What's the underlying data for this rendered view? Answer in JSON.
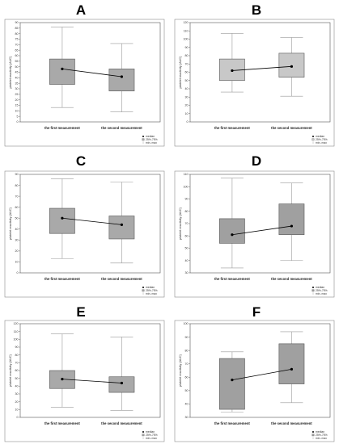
{
  "chart_data": [
    {
      "type": "box",
      "panel_letter": "A",
      "ylabel": "platelet reactivity (AUC)",
      "ylim": [
        0,
        90
      ],
      "yticks": [
        0,
        5,
        10,
        15,
        20,
        25,
        30,
        35,
        40,
        45,
        50,
        55,
        60,
        65,
        70,
        75,
        80,
        85,
        90
      ],
      "categories": [
        "the first measurement",
        "the second measurement"
      ],
      "box_fill": "#a9a9a9",
      "boxes": [
        {
          "min": 13,
          "q1": 34,
          "median": 48,
          "q3": 57,
          "max": 86
        },
        {
          "min": 9,
          "q1": 28,
          "median": 41,
          "q3": 48,
          "max": 71
        }
      ],
      "legend": [
        "median",
        "25%-75%",
        "min- max"
      ]
    },
    {
      "type": "box",
      "panel_letter": "B",
      "ylabel": "platelet reactivity (AUC)",
      "ylim": [
        0,
        120
      ],
      "yticks": [
        0,
        10,
        20,
        30,
        40,
        50,
        60,
        70,
        80,
        90,
        100,
        110,
        120
      ],
      "categories": [
        "the first measurement",
        "the second measurement"
      ],
      "box_fill": "#c8c8c8",
      "boxes": [
        {
          "min": 36,
          "q1": 50,
          "median": 62,
          "q3": 76,
          "max": 107
        },
        {
          "min": 31,
          "q1": 54,
          "median": 67,
          "q3": 83,
          "max": 102
        }
      ],
      "legend": [
        "median",
        "25%-75%",
        "min- max"
      ]
    },
    {
      "type": "box",
      "panel_letter": "C",
      "ylabel": "platelet reactivity (AUC)",
      "ylim": [
        0,
        90
      ],
      "yticks": [
        0,
        10,
        20,
        30,
        40,
        50,
        60,
        70,
        80,
        90
      ],
      "categories": [
        "the first measurement",
        "the second measurement"
      ],
      "box_fill": "#a9a9a9",
      "boxes": [
        {
          "min": 13,
          "q1": 36,
          "median": 50,
          "q3": 59,
          "max": 86
        },
        {
          "min": 9,
          "q1": 31,
          "median": 44,
          "q3": 52,
          "max": 83
        }
      ],
      "legend": [
        "median",
        "25%-75%",
        "min- max"
      ]
    },
    {
      "type": "box",
      "panel_letter": "D",
      "ylabel": "platelet reactivity (AUC)",
      "ylim": [
        30,
        110
      ],
      "yticks": [
        30,
        40,
        50,
        60,
        70,
        80,
        90,
        100,
        110
      ],
      "categories": [
        "the first measurement",
        "the second measurement"
      ],
      "box_fill": "#a0a0a0",
      "boxes": [
        {
          "min": 34,
          "q1": 54,
          "median": 61,
          "q3": 74,
          "max": 107
        },
        {
          "min": 40,
          "q1": 61,
          "median": 68,
          "q3": 86,
          "max": 103
        }
      ],
      "legend": [
        "median",
        "25%-75%",
        "min- max"
      ]
    },
    {
      "type": "box",
      "panel_letter": "E",
      "ylabel": "platelet reactivity (AUC)",
      "ylim": [
        0,
        120
      ],
      "yticks": [
        0,
        10,
        20,
        30,
        40,
        50,
        60,
        70,
        80,
        90,
        100,
        110,
        120
      ],
      "categories": [
        "the first measurement",
        "the second measurement"
      ],
      "box_fill": "#a9a9a9",
      "boxes": [
        {
          "min": 13,
          "q1": 37,
          "median": 49,
          "q3": 60,
          "max": 107
        },
        {
          "min": 9,
          "q1": 32,
          "median": 44,
          "q3": 52,
          "max": 103
        }
      ],
      "legend": [
        "median",
        "25%-75%",
        "min- max"
      ]
    },
    {
      "type": "box",
      "panel_letter": "F",
      "ylabel": "platelet reactivity (AUC)",
      "ylim": [
        30,
        100
      ],
      "yticks": [
        30,
        40,
        50,
        60,
        70,
        80,
        90,
        100
      ],
      "categories": [
        "the first measurement",
        "the second measurement"
      ],
      "box_fill": "#a0a0a0",
      "boxes": [
        {
          "min": 34,
          "q1": 36,
          "median": 58,
          "q3": 74,
          "max": 79
        },
        {
          "min": 41,
          "q1": 55,
          "median": 66,
          "q3": 85,
          "max": 94
        }
      ],
      "legend": [
        "median",
        "25%-75%",
        "min- max"
      ]
    }
  ]
}
